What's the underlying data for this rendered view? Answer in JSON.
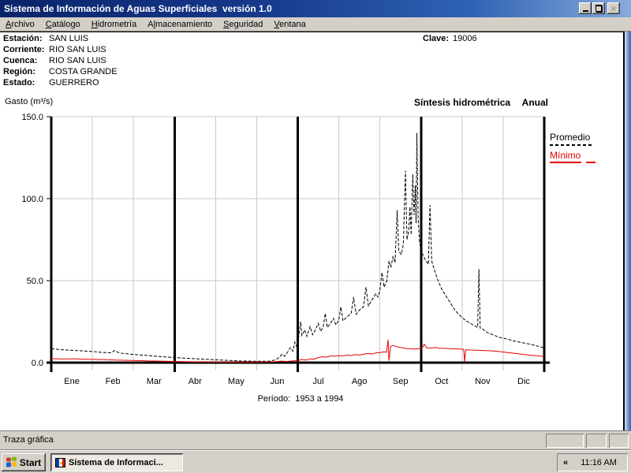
{
  "window": {
    "title": "Sistema de Información de Aguas Superficiales  versión 1.0"
  },
  "menu": {
    "items": [
      {
        "id": "archivo",
        "label": "Archivo",
        "u": 0
      },
      {
        "id": "catalogo",
        "label": "Catálogo",
        "u": 0
      },
      {
        "id": "hidrometria",
        "label": "Hidrometría",
        "u": 0
      },
      {
        "id": "almacenamiento",
        "label": "Almacenamiento",
        "u": 1
      },
      {
        "id": "seguridad",
        "label": "Seguridad",
        "u": 0
      },
      {
        "id": "ventana",
        "label": "Ventana",
        "u": 0
      }
    ]
  },
  "station": {
    "rows": [
      {
        "label": "Estación:",
        "value": "SAN LUIS"
      },
      {
        "label": "Corriente:",
        "value": "RIO SAN LUIS"
      },
      {
        "label": "Cuenca:",
        "value": "RIO SAN LUIS"
      },
      {
        "label": "Región:",
        "value": "COSTA GRANDE"
      },
      {
        "label": "Estado:",
        "value": "GUERRERO"
      }
    ],
    "clave_label": "Clave:",
    "clave_value": "19006"
  },
  "header": {
    "ylabel": "Gasto (m³/s)",
    "title_left": "Síntesis hidrométrica",
    "title_right": "Anual"
  },
  "legend": {
    "promedio": "Promedio",
    "minimo": "Mínimo"
  },
  "period": {
    "text": "Período:  1953 a 1994"
  },
  "chart_data": {
    "type": "line",
    "title": "Síntesis hidrométrica Anual",
    "ylabel": "Gasto (m³/s)",
    "period": "1953 a 1994",
    "x_categories": [
      "Ene",
      "Feb",
      "Mar",
      "Abr",
      "May",
      "Jun",
      "Jul",
      "Ago",
      "Sep",
      "Oct",
      "Nov",
      "Dic"
    ],
    "y_ticks": [
      0,
      50,
      100,
      150
    ],
    "ylim": [
      0,
      150
    ],
    "grid_color": "#c9c9c9",
    "quarter_divider_months": [
      0,
      3,
      6,
      9,
      12
    ],
    "series": [
      {
        "name": "Promedio",
        "key": "promedio",
        "style": "dashed",
        "color": "#000000",
        "points": [
          [
            0,
            8.5
          ],
          [
            0.2,
            8.0
          ],
          [
            0.5,
            7.5
          ],
          [
            0.8,
            7.1
          ],
          [
            1.0,
            6.8
          ],
          [
            1.25,
            6.2
          ],
          [
            1.45,
            6.0
          ],
          [
            1.55,
            7.4
          ],
          [
            1.65,
            5.9
          ],
          [
            1.85,
            5.4
          ],
          [
            2.0,
            5.0
          ],
          [
            2.3,
            4.4
          ],
          [
            2.6,
            3.8
          ],
          [
            3.0,
            3.1
          ],
          [
            3.4,
            2.5
          ],
          [
            3.8,
            2.0
          ],
          [
            4.2,
            1.5
          ],
          [
            4.6,
            1.0
          ],
          [
            5.0,
            0.8
          ],
          [
            5.3,
            0.8
          ],
          [
            5.45,
            1.6
          ],
          [
            5.55,
            3.2
          ],
          [
            5.62,
            5.2
          ],
          [
            5.68,
            3.9
          ],
          [
            5.75,
            6.2
          ],
          [
            5.82,
            9.2
          ],
          [
            5.88,
            7.0
          ],
          [
            5.93,
            12.5
          ],
          [
            5.97,
            10.0
          ],
          [
            6.02,
            15.0
          ],
          [
            6.07,
            25.0
          ],
          [
            6.1,
            16.5
          ],
          [
            6.17,
            20.0
          ],
          [
            6.22,
            16.0
          ],
          [
            6.3,
            22.0
          ],
          [
            6.36,
            17.0
          ],
          [
            6.44,
            20.5
          ],
          [
            6.5,
            24.0
          ],
          [
            6.56,
            19.0
          ],
          [
            6.62,
            22.0
          ],
          [
            6.67,
            30.0
          ],
          [
            6.72,
            21.5
          ],
          [
            6.8,
            24.0
          ],
          [
            6.87,
            27.0
          ],
          [
            6.93,
            23.0
          ],
          [
            7.0,
            26.0
          ],
          [
            7.05,
            34.0
          ],
          [
            7.1,
            25.5
          ],
          [
            7.2,
            28.0
          ],
          [
            7.3,
            30.0
          ],
          [
            7.36,
            40.0
          ],
          [
            7.42,
            29.5
          ],
          [
            7.5,
            32.0
          ],
          [
            7.6,
            34.0
          ],
          [
            7.66,
            46.0
          ],
          [
            7.72,
            34.5
          ],
          [
            7.8,
            38.0
          ],
          [
            7.9,
            42.0
          ],
          [
            7.95,
            40.0
          ],
          [
            8.0,
            44.0
          ],
          [
            8.05,
            55.0
          ],
          [
            8.1,
            46.0
          ],
          [
            8.17,
            50.0
          ],
          [
            8.22,
            62.0
          ],
          [
            8.27,
            58.0
          ],
          [
            8.32,
            65.0
          ],
          [
            8.37,
            61.0
          ],
          [
            8.42,
            93.0
          ],
          [
            8.46,
            68.0
          ],
          [
            8.52,
            66.0
          ],
          [
            8.57,
            72.0
          ],
          [
            8.62,
            117.0
          ],
          [
            8.66,
            75.0
          ],
          [
            8.7,
            80.0
          ],
          [
            8.73,
            95.0
          ],
          [
            8.76,
            78.0
          ],
          [
            8.8,
            115.0
          ],
          [
            8.83,
            90.0
          ],
          [
            8.86,
            108.0
          ],
          [
            8.88,
            85.0
          ],
          [
            8.9,
            140.0
          ],
          [
            8.93,
            88.0
          ],
          [
            8.96,
            75.0
          ],
          [
            9.0,
            68.0
          ],
          [
            9.06,
            65.0
          ],
          [
            9.12,
            62.0
          ],
          [
            9.18,
            60.0
          ],
          [
            9.22,
            96.0
          ],
          [
            9.26,
            62.0
          ],
          [
            9.32,
            57.0
          ],
          [
            9.4,
            51.0
          ],
          [
            9.5,
            45.0
          ],
          [
            9.6,
            41.0
          ],
          [
            9.7,
            37.0
          ],
          [
            9.8,
            33.0
          ],
          [
            9.9,
            30.0
          ],
          [
            10.0,
            27.5
          ],
          [
            10.1,
            25.5
          ],
          [
            10.2,
            24.0
          ],
          [
            10.3,
            22.5
          ],
          [
            10.38,
            21.5
          ],
          [
            10.41,
            57.0
          ],
          [
            10.44,
            21.0
          ],
          [
            10.5,
            20.5
          ],
          [
            10.6,
            18.5
          ],
          [
            10.7,
            17.5
          ],
          [
            10.8,
            16.5
          ],
          [
            10.9,
            15.5
          ],
          [
            11.0,
            15.0
          ],
          [
            11.15,
            14.0
          ],
          [
            11.3,
            13.0
          ],
          [
            11.5,
            12.0
          ],
          [
            11.7,
            11.0
          ],
          [
            11.85,
            10.0
          ],
          [
            12.0,
            9.0
          ]
        ]
      },
      {
        "name": "Mínimo",
        "key": "minimo",
        "style": "solid",
        "color": "#e60000",
        "points": [
          [
            0,
            2.4
          ],
          [
            0.3,
            2.2
          ],
          [
            0.55,
            2.35
          ],
          [
            0.8,
            2.1
          ],
          [
            1.2,
            1.9
          ],
          [
            1.6,
            1.6
          ],
          [
            2.0,
            1.3
          ],
          [
            2.4,
            1.0
          ],
          [
            2.8,
            0.8
          ],
          [
            3.2,
            0.6
          ],
          [
            3.6,
            0.45
          ],
          [
            4.0,
            0.35
          ],
          [
            4.5,
            0.3
          ],
          [
            5.0,
            0.35
          ],
          [
            5.4,
            0.5
          ],
          [
            5.6,
            0.9
          ],
          [
            5.75,
            0.7
          ],
          [
            5.9,
            1.1
          ],
          [
            6.0,
            1.3
          ],
          [
            6.1,
            1.9
          ],
          [
            6.2,
            1.6
          ],
          [
            6.3,
            2.3
          ],
          [
            6.4,
            2.1
          ],
          [
            6.5,
            3.1
          ],
          [
            6.6,
            3.6
          ],
          [
            6.7,
            3.3
          ],
          [
            6.8,
            4.1
          ],
          [
            6.9,
            3.9
          ],
          [
            7.0,
            4.3
          ],
          [
            7.1,
            4.1
          ],
          [
            7.2,
            4.6
          ],
          [
            7.3,
            4.3
          ],
          [
            7.4,
            4.9
          ],
          [
            7.5,
            4.6
          ],
          [
            7.6,
            5.1
          ],
          [
            7.7,
            5.6
          ],
          [
            7.8,
            5.3
          ],
          [
            7.9,
            5.9
          ],
          [
            8.0,
            6.1
          ],
          [
            8.1,
            6.6
          ],
          [
            8.16,
            6.3
          ],
          [
            8.2,
            14.0
          ],
          [
            8.22,
            1.2
          ],
          [
            8.26,
            9.8
          ],
          [
            8.32,
            10.6
          ],
          [
            8.38,
            10.0
          ],
          [
            8.46,
            9.4
          ],
          [
            8.55,
            9.0
          ],
          [
            8.65,
            8.6
          ],
          [
            8.75,
            8.4
          ],
          [
            8.85,
            8.3
          ],
          [
            8.95,
            8.5
          ],
          [
            9.02,
            8.6
          ],
          [
            9.08,
            11.2
          ],
          [
            9.14,
            9.0
          ],
          [
            9.25,
            8.9
          ],
          [
            9.35,
            9.3
          ],
          [
            9.45,
            8.8
          ],
          [
            9.55,
            8.7
          ],
          [
            9.65,
            8.6
          ],
          [
            9.75,
            8.5
          ],
          [
            9.85,
            8.4
          ],
          [
            9.95,
            8.3
          ],
          [
            10.04,
            8.1
          ],
          [
            10.06,
            0.6
          ],
          [
            10.09,
            7.9
          ],
          [
            10.2,
            7.7
          ],
          [
            10.4,
            7.5
          ],
          [
            10.6,
            7.3
          ],
          [
            10.8,
            7.0
          ],
          [
            11.0,
            6.5
          ],
          [
            11.2,
            5.9
          ],
          [
            11.4,
            5.3
          ],
          [
            11.6,
            4.7
          ],
          [
            11.8,
            4.2
          ],
          [
            12.0,
            3.8
          ]
        ]
      }
    ]
  },
  "status_bar": {
    "text": "Traza gráfica"
  },
  "taskbar": {
    "start_label": "Start",
    "task_label": "Sistema de Informaci...",
    "tray_chevron": "«",
    "clock": "11:16 AM"
  }
}
